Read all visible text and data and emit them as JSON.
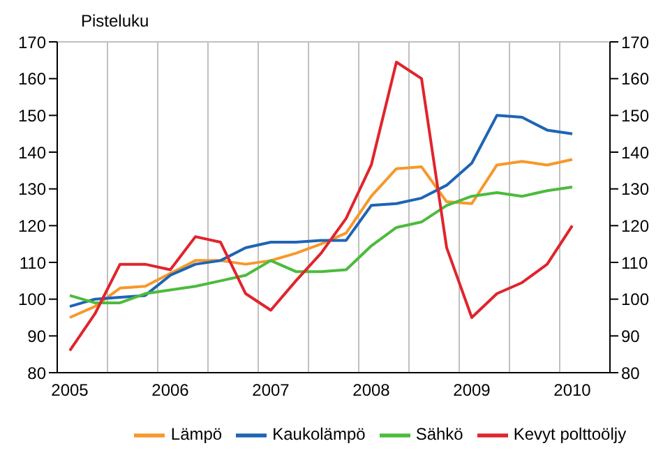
{
  "chart_data": {
    "type": "line",
    "ylabel": "Pisteluku",
    "categories": [
      "2005",
      null,
      null,
      null,
      "2006",
      null,
      null,
      null,
      "2007",
      null,
      null,
      null,
      "2008",
      null,
      null,
      null,
      "2009",
      null,
      null,
      null,
      "2010"
    ],
    "series": [
      {
        "name": "Lämpö",
        "color": "#f7982a",
        "values": [
          95,
          98,
          103,
          103.5,
          107,
          110.5,
          110.5,
          109.5,
          110.5,
          112.5,
          115,
          118,
          128,
          135.5,
          136,
          126.5,
          126,
          136.5,
          137.5,
          136.5,
          138
        ]
      },
      {
        "name": "Kaukolämpö",
        "color": "#1e64b4",
        "values": [
          98,
          100,
          100.5,
          101,
          106.5,
          109.5,
          110.5,
          114,
          115.5,
          115.5,
          116,
          116,
          125.5,
          126,
          127.5,
          131,
          137,
          150,
          149.5,
          146,
          145
        ]
      },
      {
        "name": "Sähkö",
        "color": "#4cbb3c",
        "values": [
          101,
          99,
          99,
          101.5,
          102.5,
          103.5,
          105,
          106.5,
          110.5,
          107.5,
          107.5,
          108,
          114.5,
          119.5,
          121,
          125.5,
          128,
          129,
          128,
          129.5,
          130.5
        ]
      },
      {
        "name": "Kevyt polttoöljy",
        "color": "#e0242c",
        "values": [
          86,
          96,
          109.5,
          109.5,
          108,
          117,
          115.5,
          101.5,
          97,
          105,
          112.5,
          122,
          136.5,
          164.5,
          160,
          114,
          95,
          101.5,
          104.5,
          109.5,
          120
        ]
      }
    ],
    "ylim": [
      80,
      170
    ],
    "yticks": [
      80,
      90,
      100,
      110,
      120,
      130,
      140,
      150,
      160,
      170
    ],
    "y2lim": [
      80,
      170
    ],
    "y2ticks": [
      80,
      90,
      100,
      110,
      120,
      130,
      140,
      150,
      160,
      170
    ],
    "grid": true,
    "legend": "bottom",
    "marker": "none",
    "line_style": "solid"
  }
}
